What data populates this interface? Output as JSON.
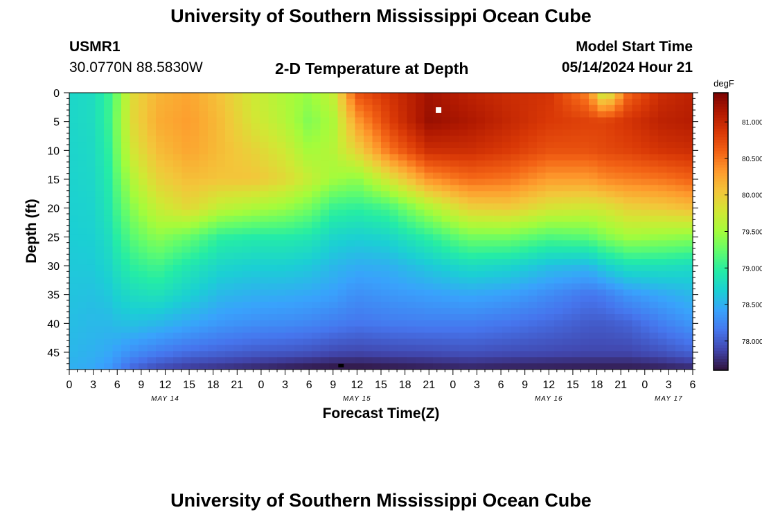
{
  "header": {
    "title": "University of Southern Mississippi Ocean Cube",
    "station_id": "USMR1",
    "coordinates": "30.0770N  88.5830W",
    "subtitle": "2-D Temperature at Depth",
    "model_label": "Model Start Time",
    "model_time": "05/14/2024 Hour 21"
  },
  "footer": {
    "title": "University of Southern Mississippi Ocean Cube"
  },
  "chart_data": {
    "type": "heatmap",
    "title": "2-D Temperature at Depth",
    "xlabel": "Forecast Time(Z)",
    "ylabel": "Depth (ft)",
    "x_hours_range": [
      0,
      78
    ],
    "x_tick_labels": [
      "0",
      "3",
      "6",
      "9",
      "12",
      "15",
      "18",
      "21",
      "0",
      "3",
      "6",
      "9",
      "12",
      "15",
      "18",
      "21",
      "0",
      "3",
      "6",
      "9",
      "12",
      "15",
      "18",
      "21",
      "0",
      "3",
      "6"
    ],
    "date_labels": [
      {
        "label": "MAY 14",
        "hour": 12
      },
      {
        "label": "MAY 15",
        "hour": 36
      },
      {
        "label": "MAY 16",
        "hour": 60
      },
      {
        "label": "MAY 17",
        "hour": 75
      }
    ],
    "y_range": [
      0,
      48
    ],
    "y_ticks": [
      0,
      5,
      10,
      15,
      20,
      25,
      30,
      35,
      40,
      45
    ],
    "colorbar": {
      "unit": "degF",
      "range": [
        77.6,
        81.4
      ],
      "tick_values": [
        81.0,
        80.5,
        80.0,
        79.5,
        79.0,
        78.5,
        78.0
      ],
      "tick_labels": [
        "81.000",
        "80.500",
        "80.000",
        "79.500",
        "79.000",
        "78.500",
        "78.000"
      ],
      "stops": [
        "#30123b",
        "#4145ab",
        "#4675ed",
        "#39a2fc",
        "#1bcfd4",
        "#24eca6",
        "#61fc6c",
        "#a4fc3b",
        "#d1e834",
        "#f3c63a",
        "#fe9b2d",
        "#f36315",
        "#d93806",
        "#b11901",
        "#7a0402"
      ]
    },
    "grid_nx": 72,
    "grid_ny": 45,
    "markers": [
      {
        "name": "white-marker",
        "hour": 46.2,
        "depth": 3,
        "color": "#ffffff"
      },
      {
        "name": "black-marker",
        "hour": 34,
        "depth": 47.5,
        "color": "#000000"
      }
    ],
    "profiles": {
      "note": "temperature degF at depth (ft) for sampled forecast hours; grid interpolated from these",
      "depths": [
        0,
        5,
        10,
        15,
        20,
        25,
        30,
        35,
        40,
        45,
        48
      ],
      "columns": [
        {
          "hour": 0,
          "temps": [
            78.75,
            78.75,
            78.73,
            78.72,
            78.7,
            78.68,
            78.65,
            78.62,
            78.58,
            78.54,
            78.5
          ]
        },
        {
          "hour": 3,
          "temps": [
            78.8,
            78.8,
            78.78,
            78.76,
            78.73,
            78.7,
            78.66,
            78.6,
            78.55,
            78.5,
            78.45
          ]
        },
        {
          "hour": 5,
          "temps": [
            79.05,
            79.05,
            79.0,
            78.95,
            78.9,
            78.82,
            78.75,
            78.65,
            78.55,
            78.45,
            78.35
          ]
        },
        {
          "hour": 6,
          "temps": [
            79.3,
            79.35,
            79.3,
            79.2,
            79.1,
            78.98,
            78.85,
            78.72,
            78.58,
            78.4,
            78.25
          ]
        },
        {
          "hour": 8,
          "temps": [
            79.9,
            79.9,
            79.8,
            79.6,
            79.4,
            79.2,
            79.0,
            78.8,
            78.6,
            78.3,
            78.05
          ]
        },
        {
          "hour": 11,
          "temps": [
            80.15,
            80.2,
            80.1,
            79.95,
            79.7,
            79.4,
            79.1,
            78.85,
            78.55,
            78.2,
            77.9
          ]
        },
        {
          "hour": 15,
          "temps": [
            80.25,
            80.3,
            80.25,
            80.1,
            79.9,
            79.25,
            78.9,
            78.7,
            78.45,
            78.1,
            77.8
          ]
        },
        {
          "hour": 19,
          "temps": [
            80.05,
            80.1,
            80.1,
            80.05,
            79.65,
            79.0,
            78.75,
            78.55,
            78.35,
            78.05,
            77.75
          ]
        },
        {
          "hour": 23,
          "temps": [
            79.75,
            79.8,
            79.95,
            80.05,
            79.55,
            78.95,
            78.7,
            78.5,
            78.3,
            78.0,
            77.7
          ]
        },
        {
          "hour": 27,
          "temps": [
            79.55,
            79.6,
            79.75,
            79.9,
            79.45,
            78.95,
            78.7,
            78.48,
            78.28,
            77.98,
            77.65
          ]
        },
        {
          "hour": 30,
          "temps": [
            79.45,
            79.35,
            79.5,
            79.7,
            79.3,
            78.9,
            78.65,
            78.45,
            78.25,
            77.95,
            77.62
          ]
        },
        {
          "hour": 33,
          "temps": [
            79.7,
            79.55,
            79.6,
            79.5,
            79.05,
            78.75,
            78.55,
            78.4,
            78.2,
            77.9,
            77.6
          ]
        },
        {
          "hour": 36,
          "temps": [
            80.7,
            80.3,
            79.95,
            79.4,
            79.0,
            78.7,
            78.48,
            78.3,
            78.15,
            77.88,
            77.6
          ]
        },
        {
          "hour": 40,
          "temps": [
            80.9,
            80.8,
            80.5,
            79.8,
            79.1,
            78.75,
            78.5,
            78.35,
            78.18,
            77.9,
            77.62
          ]
        },
        {
          "hour": 45,
          "temps": [
            81.2,
            81.25,
            80.95,
            80.35,
            79.55,
            79.0,
            78.65,
            78.4,
            78.2,
            77.92,
            77.65
          ]
        },
        {
          "hour": 50,
          "temps": [
            81.05,
            81.15,
            80.95,
            80.55,
            79.95,
            79.3,
            78.8,
            78.45,
            78.2,
            77.95,
            77.68
          ]
        },
        {
          "hour": 55,
          "temps": [
            80.95,
            81.0,
            80.85,
            80.5,
            80.0,
            79.3,
            78.75,
            78.4,
            78.15,
            77.92,
            77.66
          ]
        },
        {
          "hour": 60,
          "temps": [
            80.9,
            80.85,
            80.7,
            80.3,
            79.8,
            79.15,
            78.6,
            78.28,
            78.08,
            77.9,
            77.65
          ]
        },
        {
          "hour": 65,
          "temps": [
            80.4,
            80.8,
            80.7,
            80.3,
            79.75,
            79.2,
            78.55,
            78.15,
            78.0,
            77.88,
            77.64
          ]
        },
        {
          "hour": 67,
          "temps": [
            79.6,
            80.8,
            80.75,
            80.4,
            79.8,
            79.35,
            78.7,
            78.2,
            78.0,
            77.88,
            77.64
          ]
        },
        {
          "hour": 70,
          "temps": [
            80.6,
            80.9,
            80.8,
            80.45,
            79.95,
            79.5,
            78.85,
            78.35,
            78.05,
            77.88,
            77.64
          ]
        },
        {
          "hour": 74,
          "temps": [
            80.95,
            81.05,
            80.9,
            80.5,
            80.0,
            79.45,
            78.85,
            78.45,
            78.2,
            77.95,
            77.66
          ]
        },
        {
          "hour": 78,
          "temps": [
            81.05,
            81.1,
            80.95,
            80.6,
            80.1,
            79.4,
            78.8,
            78.55,
            78.35,
            78.05,
            77.7
          ]
        }
      ]
    }
  }
}
